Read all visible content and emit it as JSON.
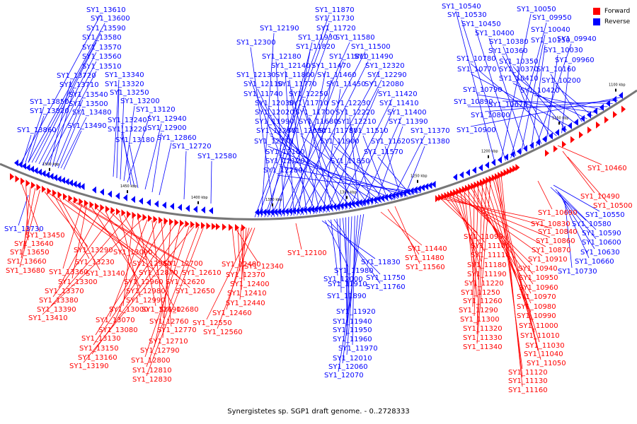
{
  "caption": "Synergistetes sp. SGP1 draft genome. - 0..2728333",
  "legend": [
    {
      "name": "Forward",
      "color": "#ff0000"
    },
    {
      "name": "Reverse",
      "color": "#0000ff"
    }
  ],
  "colors": {
    "forward": "#ff0000",
    "reverse": "#0000ff",
    "backbone": "#777777"
  },
  "ticks": [
    "1100 kbp",
    "1150 kbp",
    "1200 kbp",
    "1250 kbp",
    "1300 kbp",
    "1350 kbp",
    "1400 kbp",
    "1450 kbp",
    "1500 kbp"
  ],
  "labels_reverse": [
    "SY1_13610",
    "SY1_13600",
    "SY1_13590",
    "SY1_13580",
    "SY1_13570",
    "SY1_13560",
    "SY1_13510",
    "SY1_13720",
    "SY1_13710",
    "SY1_13540",
    "SY1_13500",
    "SY1_13480",
    "SY1_13490",
    "SY1_13850",
    "SY1_13820",
    "SY1_13860",
    "SY1_13340",
    "SY1_13320",
    "SY1_13250",
    "SY1_13200",
    "SY1_13120",
    "SY1_13240",
    "SY1_13220",
    "SY1_13180",
    "SY1_12940",
    "SY1_12900",
    "SY1_12860",
    "SY1_12720",
    "SY1_12580",
    "SY1_11870",
    "SY1_11730",
    "SY1_12190",
    "SY1_11720",
    "SY1_11930",
    "SY1_11580",
    "SY1_12300",
    "SY1_11820",
    "SY1_11500",
    "SY1_12180",
    "SY1_11810",
    "SY1_11490",
    "SY1_12140",
    "SY1_11470",
    "SY1_12320",
    "SY1_12130",
    "SY1_11800",
    "SY1_11460",
    "SY1_12290",
    "SY1_12110",
    "SY1_11770",
    "SY1_11450",
    "SY1_12080",
    "SY1_11740",
    "SY1_12250",
    "SY1_11420",
    "SY1_12030",
    "SY1_11710",
    "SY1_12230",
    "SY1_11410",
    "SY1_12020",
    "SY1_11700",
    "SY1_12220",
    "SY1_11400",
    "SY1_11990",
    "SY1_11680",
    "SY1_12210",
    "SY1_11390",
    "SY1_12240",
    "SY1_12090",
    "SY1_11780",
    "SY1_11510",
    "SY1_11370",
    "SY1_12170",
    "SY1_11900",
    "SY1_11620",
    "SY1_11380",
    "SY1_12160",
    "SY1_11570",
    "SY1_12120",
    "SY1_11850",
    "SY1_12280",
    "SY1_10540",
    "SY1_10050",
    "SY1_10530",
    "SY1_09950",
    "SY1_10450",
    "SY1_10040",
    "SY1_10400",
    "SY1_10150",
    "SY1_09940",
    "SY1_10380",
    "SY1_10030",
    "SY1_10360",
    "SY1_10780",
    "SY1_09960",
    "SY1_10350",
    "SY1_10770",
    "SY1_10370",
    "SY1_10160",
    "SY1_10410",
    "SY1_10200",
    "SY1_10790",
    "SY1_10420",
    "SY1_10890",
    "SY1_10670",
    "SY1_10800",
    "SY1_10900",
    "SY1_13730",
    "SY1_10580",
    "SY1_10550",
    "SY1_10590",
    "SY1_10600",
    "SY1_10630",
    "SY1_10660",
    "SY1_10730",
    "SY1_11830",
    "SY1_11980",
    "SY1_11750",
    "SY1_12000",
    "SY1_11760",
    "SY1_11910",
    "SY1_11890",
    "SY1_11920",
    "SY1_11940",
    "SY1_11950",
    "SY1_11960",
    "SY1_11970",
    "SY1_12010",
    "SY1_12060",
    "SY1_12070"
  ],
  "labels_forward": [
    "SY1_10460",
    "SY1_10490",
    "SY1_10500",
    "SY1_10690",
    "SY1_13450",
    "SY1_13640",
    "SY1_13650",
    "SY1_13660",
    "SY1_13680",
    "SY1_13290",
    "SY1_13090",
    "SY1_13230",
    "SY1_13140",
    "SY1_12950",
    "SY1_12870",
    "SY1_12700",
    "SY1_12610",
    "SY1_13360",
    "SY1_13300",
    "SY1_12960",
    "SY1_12620",
    "SY1_13370",
    "SY1_12980",
    "SY1_12650",
    "SY1_13380",
    "SY1_12990",
    "SY1_12680",
    "SY1_13390",
    "SY1_13000",
    "SY1_12690",
    "SY1_13410",
    "SY1_13070",
    "SY1_12760",
    "SY1_13080",
    "SY1_12770",
    "SY1_13130",
    "SY1_12710",
    "SY1_13150",
    "SY1_12790",
    "SY1_13160",
    "SY1_12800",
    "SY1_13190",
    "SY1_12810",
    "SY1_12830",
    "SY1_12480",
    "SY1_12340",
    "SY1_12370",
    "SY1_12400",
    "SY1_12410",
    "SY1_12440",
    "SY1_12460",
    "SY1_12550",
    "SY1_12560",
    "SY1_12100",
    "SY1_11440",
    "SY1_11480",
    "SY1_11560",
    "SY1_10830",
    "SY1_11090",
    "SY1_10840",
    "SY1_11100",
    "SY1_10860",
    "SY1_11110",
    "SY1_10870",
    "SY1_11180",
    "SY1_10910",
    "SY1_11190",
    "SY1_10940",
    "SY1_11220",
    "SY1_10950",
    "SY1_11250",
    "SY1_10960",
    "SY1_11260",
    "SY1_10970",
    "SY1_10980",
    "SY1_11290",
    "SY1_10990",
    "SY1_11300",
    "SY1_11000",
    "SY1_11320",
    "SY1_11010",
    "SY1_11330",
    "SY1_11030",
    "SY1_11340",
    "SY1_11040",
    "SY1_11050",
    "SY1_11120",
    "SY1_11130",
    "SY1_11160"
  ]
}
